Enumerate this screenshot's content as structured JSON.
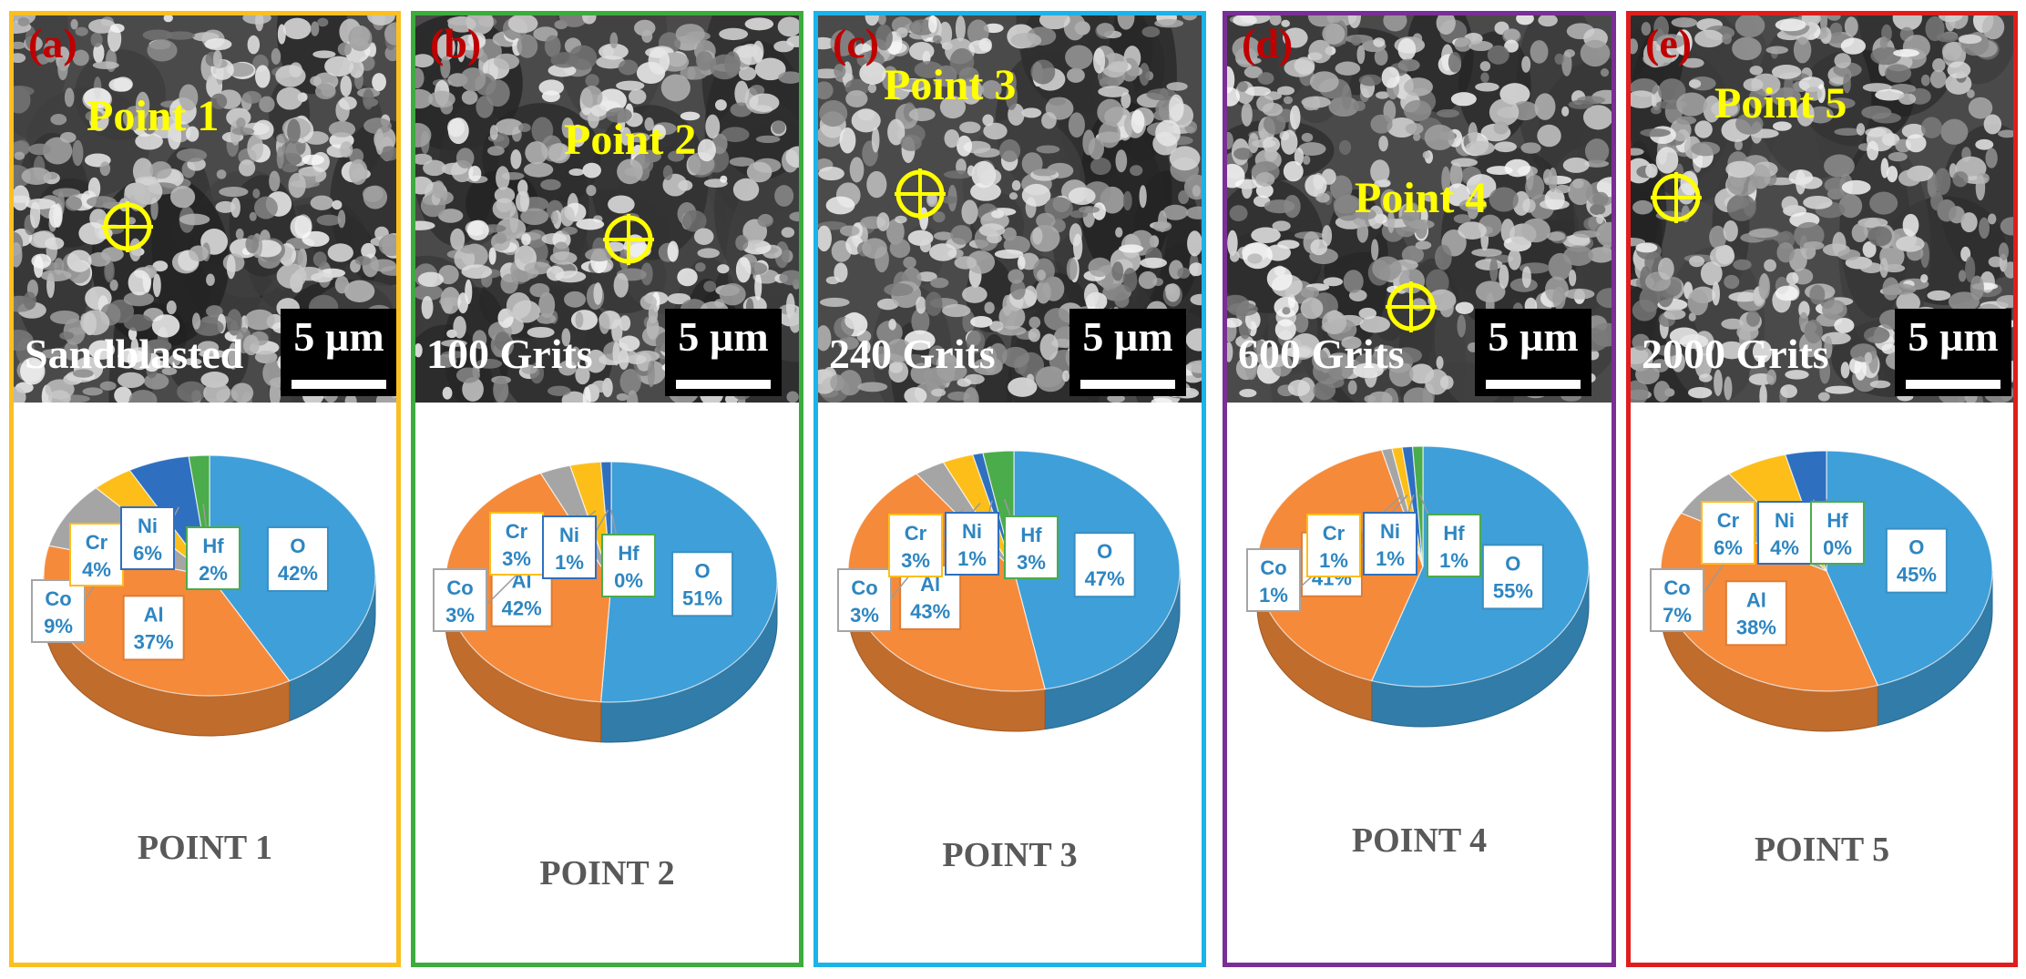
{
  "colors": {
    "O": "#3f9fd8",
    "Al": "#f58a3a",
    "Co": "#a5a5a5",
    "Cr": "#fdbe1a",
    "Ni": "#2e6fbf",
    "Hf": "#4bac4b"
  },
  "chart_data": [
    {
      "type": "pie",
      "panel_letter": "(a)",
      "frame_color": "#fcbf20",
      "point_label": "Point 1",
      "sample_label": "Sandblasted",
      "scale_label": "5 µm",
      "title": "POINT 1",
      "slices": [
        {
          "name": "O",
          "value": 42,
          "label": "42%"
        },
        {
          "name": "Al",
          "value": 37,
          "label": "37%"
        },
        {
          "name": "Co",
          "value": 9,
          "label": "9%"
        },
        {
          "name": "Cr",
          "value": 4,
          "label": "4%"
        },
        {
          "name": "Ni",
          "value": 6,
          "label": "6%"
        },
        {
          "name": "Hf",
          "value": 2,
          "label": "2%"
        }
      ]
    },
    {
      "type": "pie",
      "panel_letter": "(b)",
      "frame_color": "#3cac3c",
      "point_label": "Point 2",
      "sample_label": "100 Grits",
      "scale_label": "5 µm",
      "title": "POINT 2",
      "slices": [
        {
          "name": "O",
          "value": 51,
          "label": "51%"
        },
        {
          "name": "Al",
          "value": 42,
          "label": "42%"
        },
        {
          "name": "Co",
          "value": 3,
          "label": "3%"
        },
        {
          "name": "Cr",
          "value": 3,
          "label": "3%"
        },
        {
          "name": "Ni",
          "value": 1,
          "label": "1%"
        },
        {
          "name": "Hf",
          "value": 0,
          "label": "0%"
        }
      ]
    },
    {
      "type": "pie",
      "panel_letter": "(c)",
      "frame_color": "#1ab3ea",
      "point_label": "Point 3",
      "sample_label": "240 Grits",
      "scale_label": "5 µm",
      "title": "POINT 3",
      "slices": [
        {
          "name": "O",
          "value": 47,
          "label": "47%"
        },
        {
          "name": "Al",
          "value": 43,
          "label": "43%"
        },
        {
          "name": "Co",
          "value": 3,
          "label": "3%"
        },
        {
          "name": "Cr",
          "value": 3,
          "label": "3%"
        },
        {
          "name": "Ni",
          "value": 1,
          "label": "1%"
        },
        {
          "name": "Hf",
          "value": 3,
          "label": "3%"
        }
      ]
    },
    {
      "type": "pie",
      "panel_letter": "(d)",
      "frame_color": "#7a2f96",
      "point_label": "Point 4",
      "sample_label": "600 Grits",
      "scale_label": "5 µm",
      "title": "POINT 4",
      "slices": [
        {
          "name": "O",
          "value": 55,
          "label": "55%"
        },
        {
          "name": "Al",
          "value": 41,
          "label": "41%"
        },
        {
          "name": "Co",
          "value": 1,
          "label": "1%"
        },
        {
          "name": "Cr",
          "value": 1,
          "label": "1%"
        },
        {
          "name": "Ni",
          "value": 1,
          "label": "1%"
        },
        {
          "name": "Hf",
          "value": 1,
          "label": "1%"
        }
      ]
    },
    {
      "type": "pie",
      "panel_letter": "(e)",
      "frame_color": "#e01d1d",
      "point_label": "Point 5",
      "sample_label": "2000 Grits",
      "scale_label": "5 µm",
      "title": "POINT 5",
      "slices": [
        {
          "name": "O",
          "value": 45,
          "label": "45%"
        },
        {
          "name": "Al",
          "value": 38,
          "label": "38%"
        },
        {
          "name": "Co",
          "value": 7,
          "label": "7%"
        },
        {
          "name": "Cr",
          "value": 6,
          "label": "6%"
        },
        {
          "name": "Ni",
          "value": 4,
          "label": "4%"
        },
        {
          "name": "Hf",
          "value": 0,
          "label": "0%"
        }
      ]
    }
  ]
}
